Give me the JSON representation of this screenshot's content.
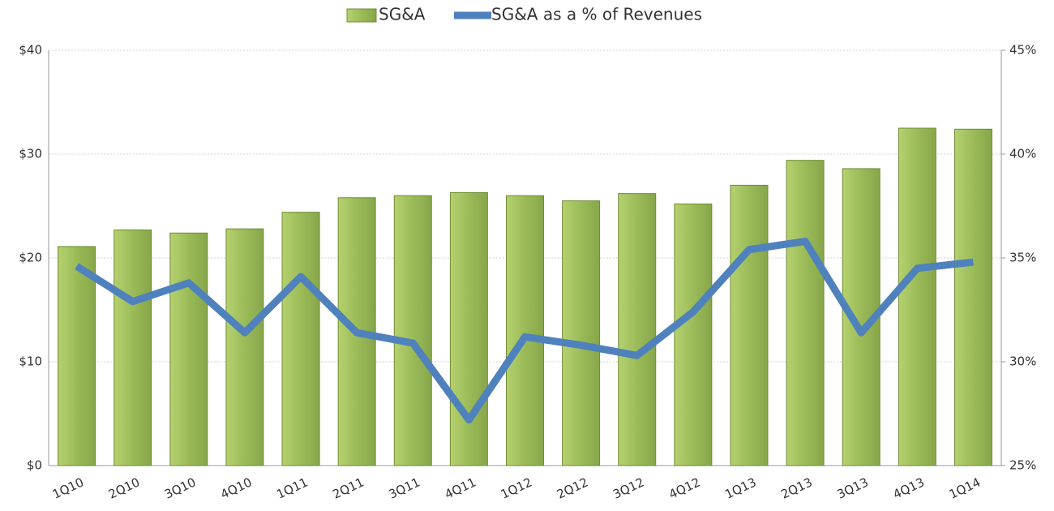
{
  "chart_data": {
    "type": "bar_line",
    "categories": [
      "1Q10",
      "2Q10",
      "3Q10",
      "4Q10",
      "1Q11",
      "2Q11",
      "3Q11",
      "4Q11",
      "1Q12",
      "2Q12",
      "3Q12",
      "4Q12",
      "1Q13",
      "2Q13",
      "3Q13",
      "4Q13",
      "1Q14"
    ],
    "series": [
      {
        "name": "SG&A",
        "type": "bar",
        "color": "#9bbb59",
        "values": [
          21.1,
          22.7,
          22.4,
          22.8,
          24.4,
          25.8,
          26.0,
          26.3,
          26.0,
          25.5,
          26.2,
          25.2,
          27.0,
          29.4,
          28.6,
          32.5,
          32.4
        ]
      },
      {
        "name": "SG&A as a % of Revenues",
        "type": "line",
        "axis": "y2",
        "color": "#4f81bd",
        "values": [
          34.6,
          32.9,
          33.8,
          31.4,
          34.1,
          31.4,
          30.9,
          27.2,
          31.2,
          30.8,
          30.3,
          32.4,
          35.4,
          35.8,
          31.4,
          34.5,
          34.8
        ]
      }
    ],
    "ylim": [
      0,
      40
    ],
    "yticks": [
      {
        "value": 0,
        "label": "$0"
      },
      {
        "value": 10,
        "label": "$10"
      },
      {
        "value": 20,
        "label": "$20"
      },
      {
        "value": 30,
        "label": "$30"
      },
      {
        "value": 40,
        "label": "$40"
      }
    ],
    "y2lim": [
      25,
      45
    ],
    "y2ticks": [
      {
        "value": 25,
        "label": "25%"
      },
      {
        "value": 30,
        "label": "30%"
      },
      {
        "value": 35,
        "label": "35%"
      },
      {
        "value": 40,
        "label": "40%"
      },
      {
        "value": 45,
        "label": "45%"
      }
    ],
    "grid": true,
    "legend": "top"
  }
}
